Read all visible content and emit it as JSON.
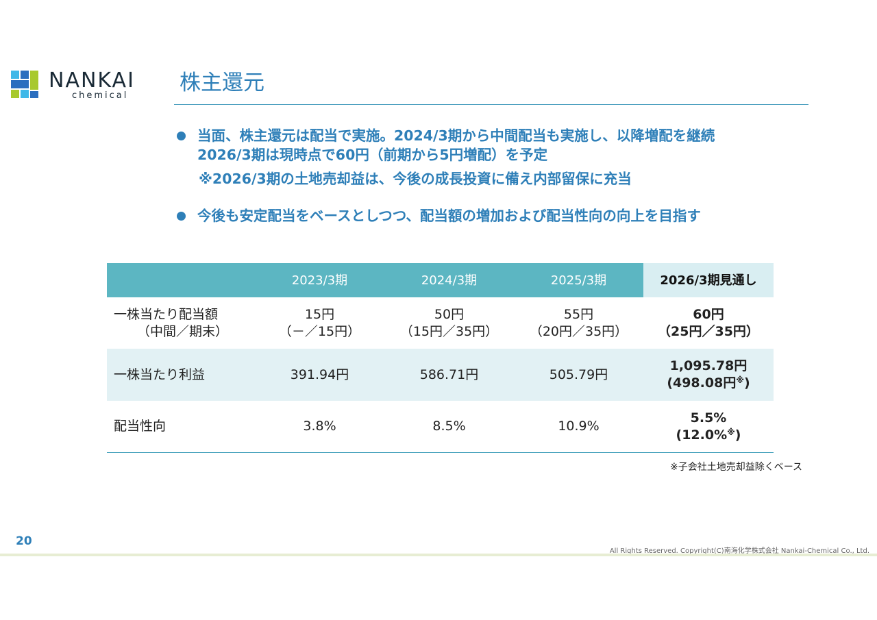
{
  "logo": {
    "word": "NANKAI",
    "sub": "chemical"
  },
  "colors": {
    "accent": "#2e7fb8",
    "table_header": "#5cb6c2",
    "table_band": "#e2f1f4",
    "logo_blue": "#2a6ebf",
    "logo_cyan": "#3fb8e8",
    "logo_green": "#a8c92e"
  },
  "title": "株主還元",
  "bullets": {
    "b1_line1": "当面、株主還元は配当で実施。2024/3期から中間配当も実施し、以降増配を継続",
    "b1_line2": "2026/3期は現時点で60円（前期から5円増配）を予定",
    "b1_note": "※2026/3期の土地売却益は、今後の成長投資に備え内部留保に充当",
    "b2": "今後も安定配当をベースとしつつ、配当額の増加および配当性向の向上を目指す"
  },
  "table": {
    "headers": [
      "",
      "2023/3期",
      "2024/3期",
      "2025/3期",
      "2026/3期見通し"
    ],
    "rows": [
      {
        "label": "一株当たり配当額",
        "label_sub": "（中間／期末）",
        "values": [
          {
            "main": "15円",
            "sub": "（－／15円）"
          },
          {
            "main": "50円",
            "sub": "（15円／35円）"
          },
          {
            "main": "55円",
            "sub": "（20円／35円）"
          },
          {
            "main": "60円",
            "sub": "（25円／35円）"
          }
        ]
      },
      {
        "label": "一株当たり利益",
        "values": [
          {
            "main": "391.94円"
          },
          {
            "main": "586.71円"
          },
          {
            "main": "505.79円"
          },
          {
            "main": "1,095.78円",
            "sub": "(498.08円",
            "mark": "※",
            "tail": ")"
          }
        ]
      },
      {
        "label": "配当性向",
        "values": [
          {
            "main": "3.8%"
          },
          {
            "main": "8.5%"
          },
          {
            "main": "10.9%"
          },
          {
            "main": "5.5%",
            "sub": "(12.0%",
            "mark": "※",
            "tail": ")"
          }
        ]
      }
    ]
  },
  "footnote": "※子会社土地売却益除くベース",
  "footer": {
    "page_number": "20",
    "copyright": "All Rights Reserved. Copyright(C)南海化学株式会社 Nankai-Chemical Co., Ltd."
  }
}
